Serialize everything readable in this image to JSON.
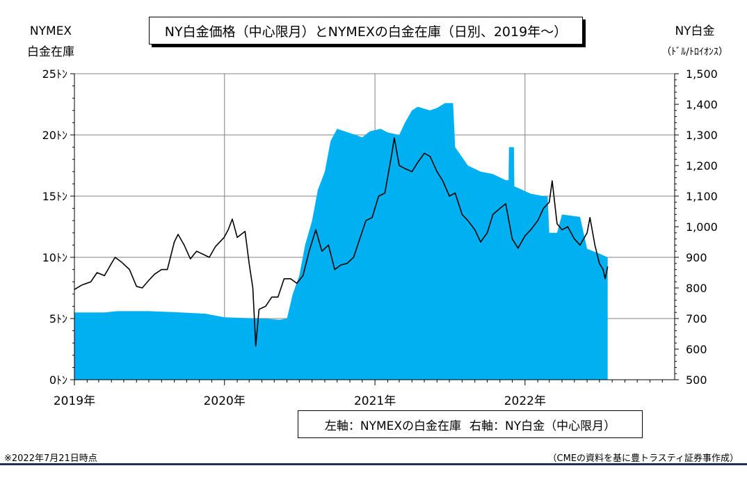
{
  "title": "NY白金価格（中心限月）とNYMEXの白金在庫（日別、2019年～）",
  "left_axis_title": [
    "NYMEX",
    "白金在庫"
  ],
  "right_axis_title": [
    "NY白金",
    "（ﾄﾞﾙ/ﾄﾛｲｵﾝｽ）"
  ],
  "legend": {
    "left": "左軸：NYMEXの白金在庫",
    "right": "右軸：NY白金（中心限月）"
  },
  "footnote": "※2022年7月21日時点",
  "source": "（CMEの資料を基に豊トラスティ証券事作成）",
  "colors": {
    "inventory_fill": "#00b0f0",
    "price_line": "#000000",
    "grid": "#808080"
  },
  "chart_data": {
    "type": "area",
    "x_type": "date",
    "x_range": [
      "2019-01-01",
      "2022-12-31"
    ],
    "x_tick_labels": [
      "2019年",
      "2020年",
      "2021年",
      "2022年"
    ],
    "left_axis": {
      "ylim": [
        0,
        25
      ],
      "ticks": [
        0,
        5,
        10,
        15,
        20,
        25
      ],
      "tick_labels": [
        "0ﾄﾝ",
        "5ﾄﾝ",
        "10ﾄﾝ",
        "15ﾄﾝ",
        "20ﾄﾝ",
        "25ﾄﾝ"
      ]
    },
    "right_axis": {
      "ylim": [
        500,
        1500
      ],
      "ticks": [
        500,
        600,
        700,
        800,
        900,
        1000,
        1100,
        1200,
        1300,
        1400,
        1500
      ],
      "tick_labels": [
        "500",
        "600",
        "700",
        "800",
        "900",
        "1,000",
        "1,100",
        "1,200",
        "1,300",
        "1,400",
        "1,500"
      ]
    },
    "grid": true,
    "series": [
      {
        "name": "NYMEXの白金在庫",
        "axis": "left",
        "type": "area",
        "points": [
          [
            "2019-01-01",
            5.5
          ],
          [
            "2019-03-15",
            5.5
          ],
          [
            "2019-04-15",
            5.6
          ],
          [
            "2019-07-01",
            5.6
          ],
          [
            "2019-09-15",
            5.5
          ],
          [
            "2019-11-15",
            5.4
          ],
          [
            "2020-01-01",
            5.1
          ],
          [
            "2020-04-01",
            5.0
          ],
          [
            "2020-05-15",
            4.9
          ],
          [
            "2020-06-01",
            5.0
          ],
          [
            "2020-06-15",
            7.0
          ],
          [
            "2020-07-01",
            8.5
          ],
          [
            "2020-07-15",
            11.0
          ],
          [
            "2020-08-01",
            13.0
          ],
          [
            "2020-08-15",
            15.5
          ],
          [
            "2020-09-01",
            17.0
          ],
          [
            "2020-09-15",
            19.5
          ],
          [
            "2020-10-01",
            20.5
          ],
          [
            "2020-11-15",
            20.0
          ],
          [
            "2020-12-01",
            19.8
          ],
          [
            "2020-12-20",
            20.3
          ],
          [
            "2021-01-15",
            20.5
          ],
          [
            "2021-02-01",
            20.2
          ],
          [
            "2021-03-01",
            20.0
          ],
          [
            "2021-03-15",
            21.0
          ],
          [
            "2021-04-01",
            22.0
          ],
          [
            "2021-04-15",
            22.3
          ],
          [
            "2021-05-15",
            22.0
          ],
          [
            "2021-06-01",
            22.2
          ],
          [
            "2021-06-20",
            22.6
          ],
          [
            "2021-07-10",
            22.6
          ],
          [
            "2021-07-15",
            19.0
          ],
          [
            "2021-08-15",
            17.5
          ],
          [
            "2021-09-15",
            17.0
          ],
          [
            "2021-10-15",
            16.8
          ],
          [
            "2021-11-15",
            16.3
          ],
          [
            "2021-11-22",
            16.3
          ],
          [
            "2021-11-23",
            19.0
          ],
          [
            "2021-12-05",
            19.0
          ],
          [
            "2021-12-06",
            15.8
          ],
          [
            "2022-01-15",
            15.2
          ],
          [
            "2022-02-15",
            15.0
          ],
          [
            "2022-02-25",
            15.0
          ],
          [
            "2022-03-01",
            12.0
          ],
          [
            "2022-03-20",
            12.0
          ],
          [
            "2022-04-01",
            13.5
          ],
          [
            "2022-05-15",
            13.3
          ],
          [
            "2022-06-01",
            10.7
          ],
          [
            "2022-07-01",
            10.3
          ],
          [
            "2022-07-21",
            10.0
          ]
        ]
      },
      {
        "name": "NY白金（中心限月）",
        "axis": "right",
        "type": "line",
        "points": [
          [
            "2019-01-01",
            795
          ],
          [
            "2019-01-20",
            810
          ],
          [
            "2019-02-10",
            820
          ],
          [
            "2019-02-25",
            850
          ],
          [
            "2019-03-15",
            840
          ],
          [
            "2019-04-01",
            880
          ],
          [
            "2019-04-10",
            900
          ],
          [
            "2019-04-25",
            885
          ],
          [
            "2019-05-15",
            860
          ],
          [
            "2019-06-01",
            805
          ],
          [
            "2019-06-15",
            800
          ],
          [
            "2019-07-01",
            825
          ],
          [
            "2019-07-15",
            845
          ],
          [
            "2019-08-01",
            860
          ],
          [
            "2019-08-15",
            860
          ],
          [
            "2019-09-01",
            950
          ],
          [
            "2019-09-10",
            975
          ],
          [
            "2019-09-25",
            940
          ],
          [
            "2019-10-10",
            895
          ],
          [
            "2019-10-25",
            920
          ],
          [
            "2019-11-10",
            910
          ],
          [
            "2019-11-25",
            900
          ],
          [
            "2019-12-10",
            935
          ],
          [
            "2019-12-31",
            965
          ],
          [
            "2020-01-10",
            990
          ],
          [
            "2020-01-20",
            1025
          ],
          [
            "2020-02-01",
            965
          ],
          [
            "2020-02-20",
            985
          ],
          [
            "2020-03-01",
            880
          ],
          [
            "2020-03-10",
            800
          ],
          [
            "2020-03-17",
            610
          ],
          [
            "2020-03-25",
            730
          ],
          [
            "2020-04-10",
            740
          ],
          [
            "2020-04-25",
            770
          ],
          [
            "2020-05-10",
            770
          ],
          [
            "2020-05-25",
            830
          ],
          [
            "2020-06-10",
            830
          ],
          [
            "2020-06-25",
            815
          ],
          [
            "2020-07-10",
            840
          ],
          [
            "2020-07-25",
            920
          ],
          [
            "2020-08-10",
            990
          ],
          [
            "2020-08-25",
            920
          ],
          [
            "2020-09-10",
            940
          ],
          [
            "2020-09-25",
            860
          ],
          [
            "2020-10-10",
            875
          ],
          [
            "2020-10-25",
            880
          ],
          [
            "2020-11-10",
            900
          ],
          [
            "2020-11-25",
            960
          ],
          [
            "2020-12-10",
            1020
          ],
          [
            "2020-12-25",
            1030
          ],
          [
            "2021-01-10",
            1100
          ],
          [
            "2021-01-25",
            1110
          ],
          [
            "2021-02-10",
            1230
          ],
          [
            "2021-02-17",
            1290
          ],
          [
            "2021-03-01",
            1200
          ],
          [
            "2021-03-15",
            1190
          ],
          [
            "2021-04-01",
            1180
          ],
          [
            "2021-04-15",
            1210
          ],
          [
            "2021-05-01",
            1240
          ],
          [
            "2021-05-15",
            1230
          ],
          [
            "2021-06-01",
            1180
          ],
          [
            "2021-06-15",
            1150
          ],
          [
            "2021-07-01",
            1100
          ],
          [
            "2021-07-15",
            1110
          ],
          [
            "2021-08-01",
            1040
          ],
          [
            "2021-08-15",
            1020
          ],
          [
            "2021-09-01",
            990
          ],
          [
            "2021-09-15",
            950
          ],
          [
            "2021-10-01",
            980
          ],
          [
            "2021-10-15",
            1040
          ],
          [
            "2021-11-01",
            1060
          ],
          [
            "2021-11-15",
            1075
          ],
          [
            "2021-12-01",
            960
          ],
          [
            "2021-12-15",
            930
          ],
          [
            "2022-01-01",
            970
          ],
          [
            "2022-01-15",
            990
          ],
          [
            "2022-02-01",
            1020
          ],
          [
            "2022-02-15",
            1060
          ],
          [
            "2022-03-01",
            1080
          ],
          [
            "2022-03-08",
            1150
          ],
          [
            "2022-03-20",
            1010
          ],
          [
            "2022-04-01",
            990
          ],
          [
            "2022-04-15",
            1000
          ],
          [
            "2022-05-01",
            960
          ],
          [
            "2022-05-15",
            940
          ],
          [
            "2022-06-01",
            980
          ],
          [
            "2022-06-08",
            1030
          ],
          [
            "2022-06-20",
            940
          ],
          [
            "2022-07-01",
            880
          ],
          [
            "2022-07-10",
            860
          ],
          [
            "2022-07-15",
            830
          ],
          [
            "2022-07-21",
            870
          ]
        ]
      }
    ]
  }
}
